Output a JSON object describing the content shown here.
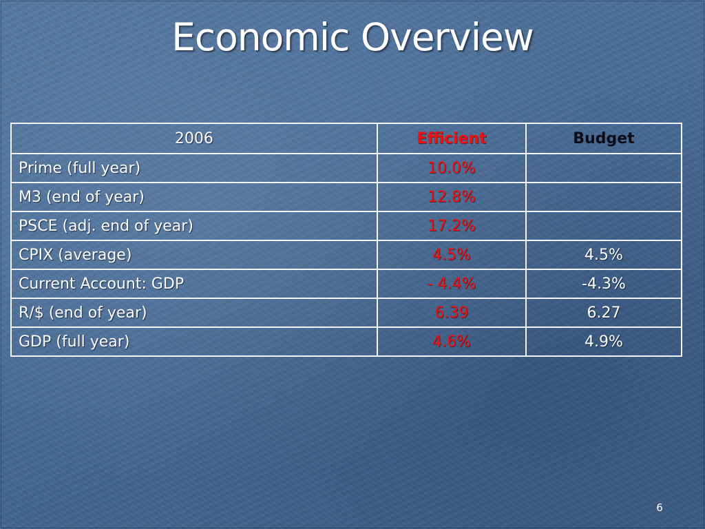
{
  "slide": {
    "title": "Economic Overview",
    "page_number": "6"
  },
  "table": {
    "headers": {
      "year": "2006",
      "efficient": "Efficient",
      "budget": "Budget"
    },
    "rows": [
      {
        "label": "Prime (full year)",
        "efficient": "10.0%",
        "budget": ""
      },
      {
        "label": "M3 (end of year)",
        "efficient": "12.8%",
        "budget": ""
      },
      {
        "label": "PSCE (adj. end of year)",
        "efficient": "17.2%",
        "budget": ""
      },
      {
        "label": "CPIX (average)",
        "efficient": "4.5%",
        "budget": "4.5%"
      },
      {
        "label": "Current Account: GDP",
        "efficient": "- 4.4%",
        "budget": "-4.3%"
      },
      {
        "label": "R/$ (end of year)",
        "efficient": "6.39",
        "budget": "6.27"
      },
      {
        "label": "GDP (full year)",
        "efficient": "4.6%",
        "budget": "4.9%"
      }
    ]
  },
  "colors": {
    "background": "#4a6d97",
    "efficient_text": "#ee1111",
    "budget_header_text": "#0d0d1a",
    "text": "#ffffff",
    "table_border": "#f2f4f8"
  }
}
